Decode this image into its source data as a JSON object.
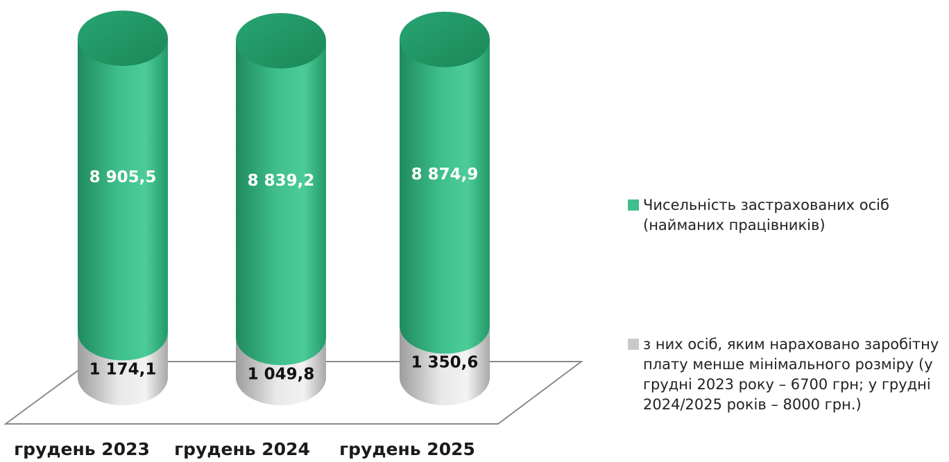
{
  "chart_data": {
    "type": "bar",
    "categories": [
      "грудень 2023",
      "грудень 2024",
      "грудень 2025"
    ],
    "series": [
      {
        "name": "Чисельність застрахованих осіб (найманих працівників)",
        "values": [
          8905.5,
          8839.2,
          8874.9
        ],
        "labels": [
          "8 905,5",
          "8 839,2",
          "8 874,9"
        ],
        "color": "#3fbf8c"
      },
      {
        "name": "з них осіб, яким нараховано заробітну плату менше мінімального розміру (у грудні 2023 року – 6700 грн; у грудні 2024/2025 років – 8000 грн.)",
        "values": [
          1174.1,
          1049.8,
          1350.6
        ],
        "labels": [
          "1 174,1",
          "1 049,8",
          "1 350,6"
        ],
        "color": "#c8c8c8"
      }
    ],
    "stacking": "overlapped cylinders",
    "legend_position": "right",
    "grid": false
  },
  "legend": {
    "item1": "Чисельність застрахованих осіб (найманих працівників)",
    "item2": "з них осіб, яким нараховано заробітну плату менше мінімального розміру (у грудні 2023 року – 6700 грн; у грудні 2024/2025 років – 8000 грн.)"
  }
}
